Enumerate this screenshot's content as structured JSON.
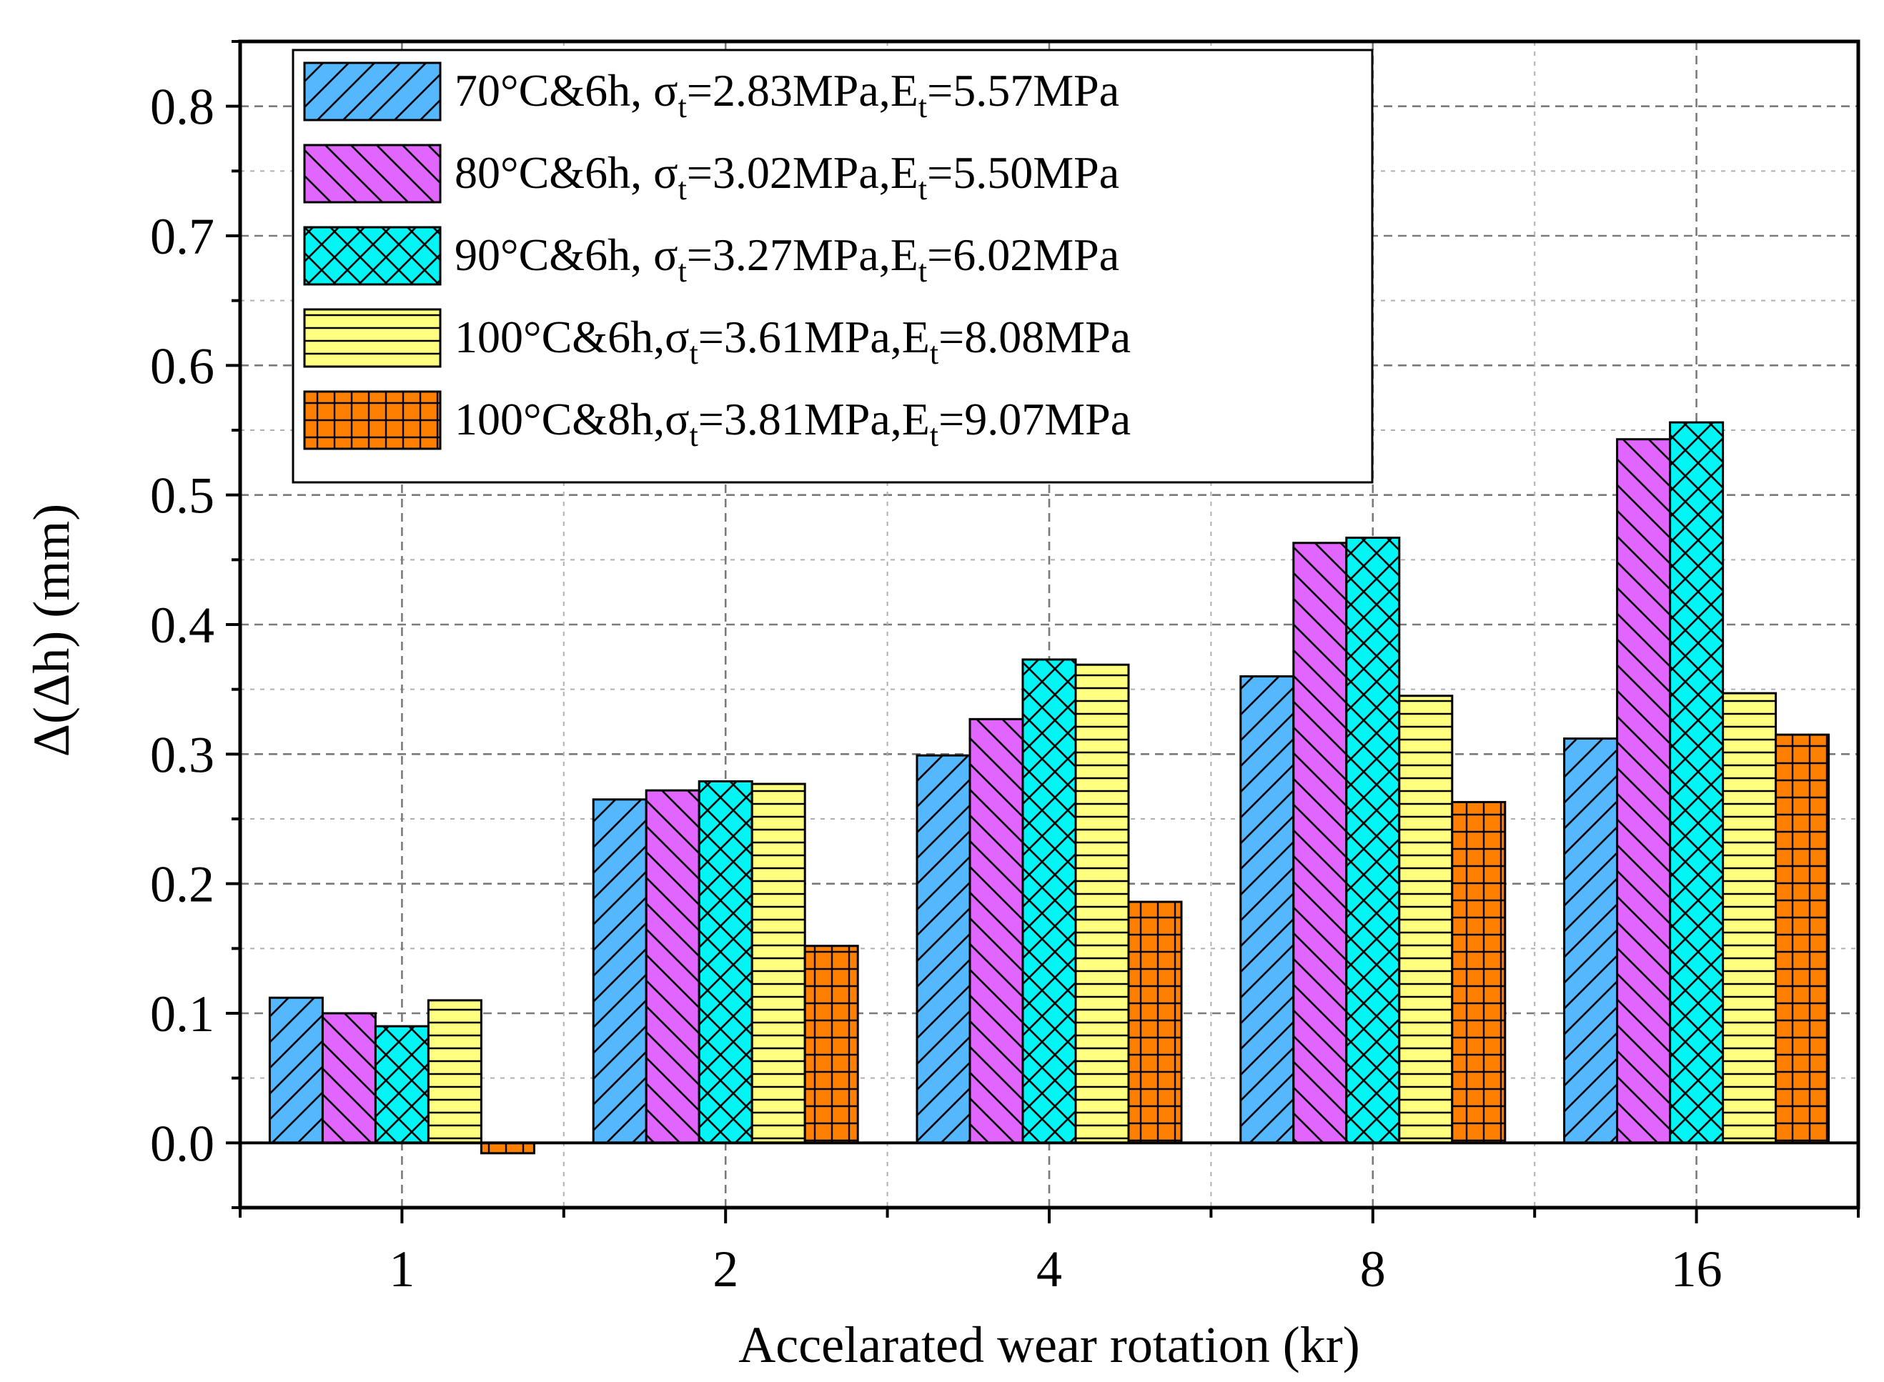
{
  "chart_data": {
    "type": "bar",
    "xlabel": "Accelarated wear rotation (kr)",
    "ylabel": "Δ(Δh) (mm)",
    "categories": [
      "1",
      "2",
      "4",
      "8",
      "16"
    ],
    "ylim": [
      -0.05,
      0.85
    ],
    "yticks": [
      0.0,
      0.1,
      0.2,
      0.3,
      0.4,
      0.5,
      0.6,
      0.7,
      0.8
    ],
    "ytick_labels": [
      "0.0",
      "0.1",
      "0.2",
      "0.3",
      "0.4",
      "0.5",
      "0.6",
      "0.7",
      "0.8"
    ],
    "grid": true,
    "legend_position": "top-left",
    "series": [
      {
        "name": "70°C&6h, σt=2.83MPa,Et=5.57MPa",
        "legend": {
          "head": "70°C&6h, σ",
          "s1": "t",
          "mid": "=2.83MPa,E",
          "s2": "t",
          "tail": "=5.57MPa"
        },
        "values": [
          0.112,
          0.265,
          0.299,
          0.36,
          0.312
        ],
        "color": "#55b8ff",
        "pattern": "diag-up"
      },
      {
        "name": "80°C&6h, σt=3.02MPa,Et=5.50MPa",
        "legend": {
          "head": "80°C&6h, σ",
          "s1": "t",
          "mid": "=3.02MPa,E",
          "s2": "t",
          "tail": "=5.50MPa"
        },
        "values": [
          0.1,
          0.272,
          0.327,
          0.463,
          0.543
        ],
        "color": "#e066ff",
        "pattern": "diag-down"
      },
      {
        "name": "90°C&6h, σt=3.27MPa,Et=6.02MPa",
        "legend": {
          "head": "90°C&6h, σ",
          "s1": "t",
          "mid": "=3.27MPa,E",
          "s2": "t",
          "tail": "=6.02MPa"
        },
        "values": [
          0.09,
          0.279,
          0.373,
          0.467,
          0.556
        ],
        "color": "#00f5f5",
        "pattern": "crosshatch"
      },
      {
        "name": "100°C&6h,σt=3.61MPa,Et=8.08MPa",
        "legend": {
          "head": "100°C&6h,σ",
          "s1": "t",
          "mid": "=3.61MPa,E",
          "s2": "t",
          "tail": "=8.08MPa"
        },
        "values": [
          0.11,
          0.277,
          0.369,
          0.345,
          0.347
        ],
        "color": "#ffff80",
        "pattern": "horizontal"
      },
      {
        "name": "100°C&8h,σt=3.81MPa,Et=9.07MPa",
        "legend": {
          "head": "100°C&8h,σ",
          "s1": "t",
          "mid": "=3.81MPa,E",
          "s2": "t",
          "tail": "=9.07MPa"
        },
        "values": [
          -0.008,
          0.152,
          0.186,
          0.263,
          0.315
        ],
        "color": "#ff8000",
        "pattern": "grid"
      }
    ]
  }
}
